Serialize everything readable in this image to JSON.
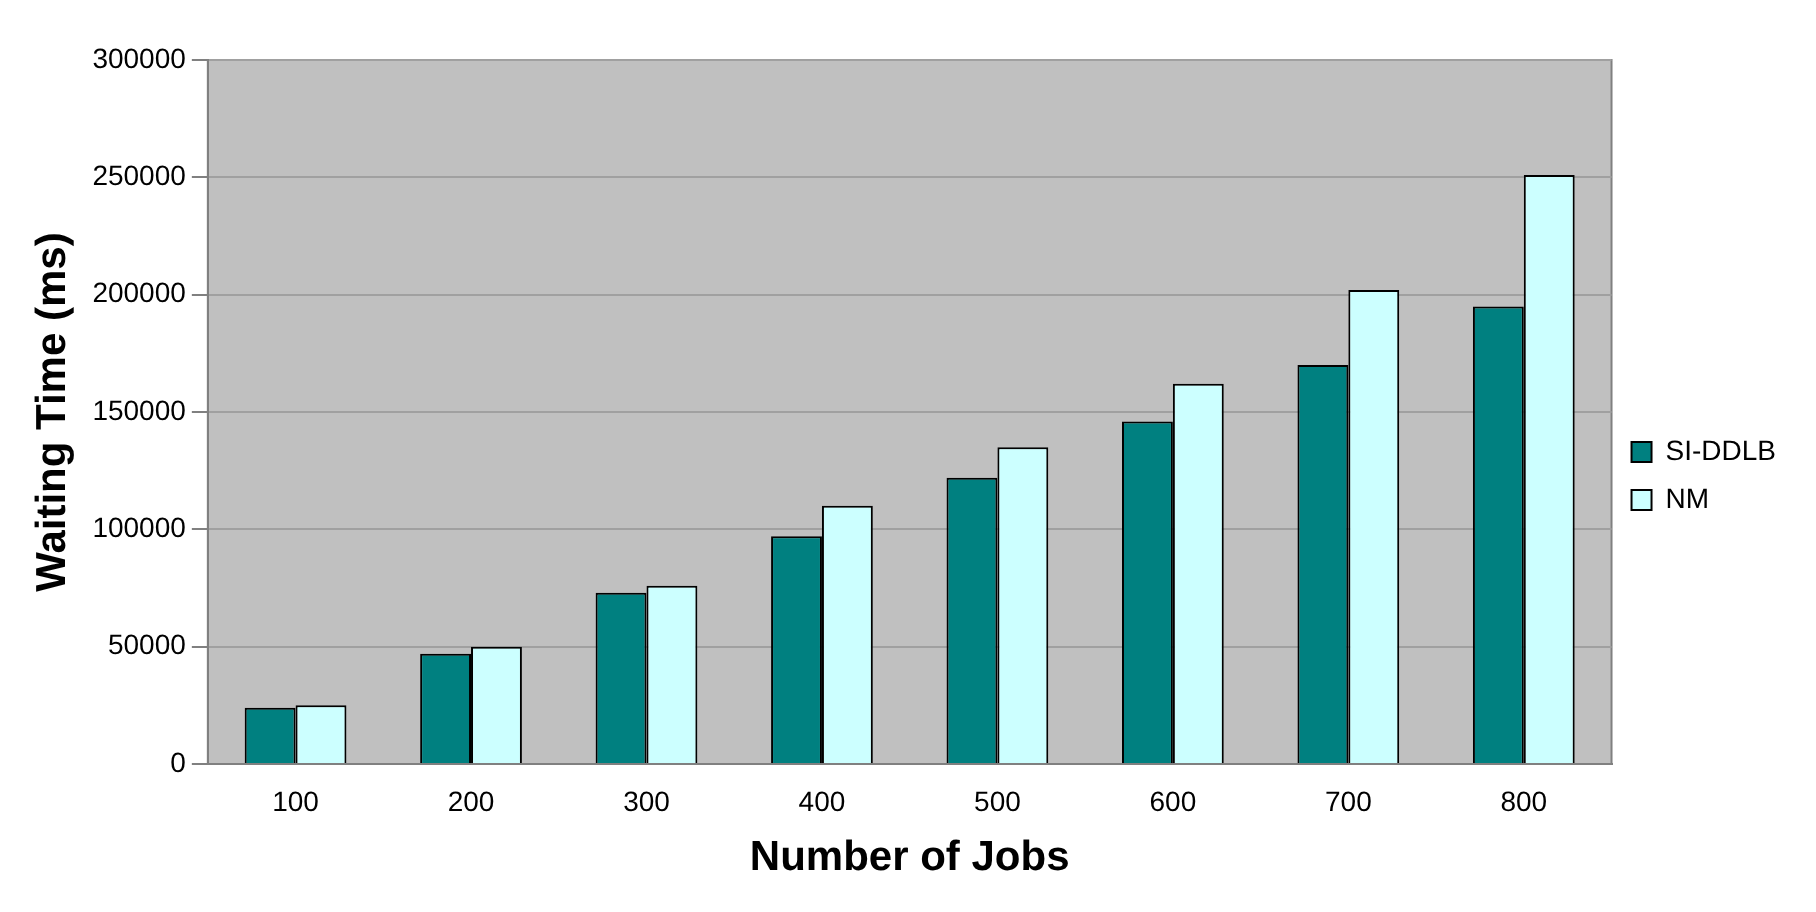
{
  "chart_data": {
    "type": "bar",
    "xlabel": "Number of Jobs",
    "ylabel": "Waiting Time (ms)",
    "categories": [
      "100",
      "200",
      "300",
      "400",
      "500",
      "600",
      "700",
      "800"
    ],
    "series": [
      {
        "name": "SI-DDLB",
        "color": "#008080",
        "values": [
          24000,
          47000,
          73000,
          97000,
          122000,
          146000,
          170000,
          195000
        ]
      },
      {
        "name": "NM",
        "color": "#ccffff",
        "values": [
          25000,
          50000,
          76000,
          110000,
          135000,
          162000,
          202000,
          251000
        ]
      }
    ],
    "ylim": [
      0,
      300000
    ],
    "yticks": [
      0,
      50000,
      100000,
      150000,
      200000,
      250000,
      300000
    ],
    "grid": "y",
    "legend": "right"
  }
}
